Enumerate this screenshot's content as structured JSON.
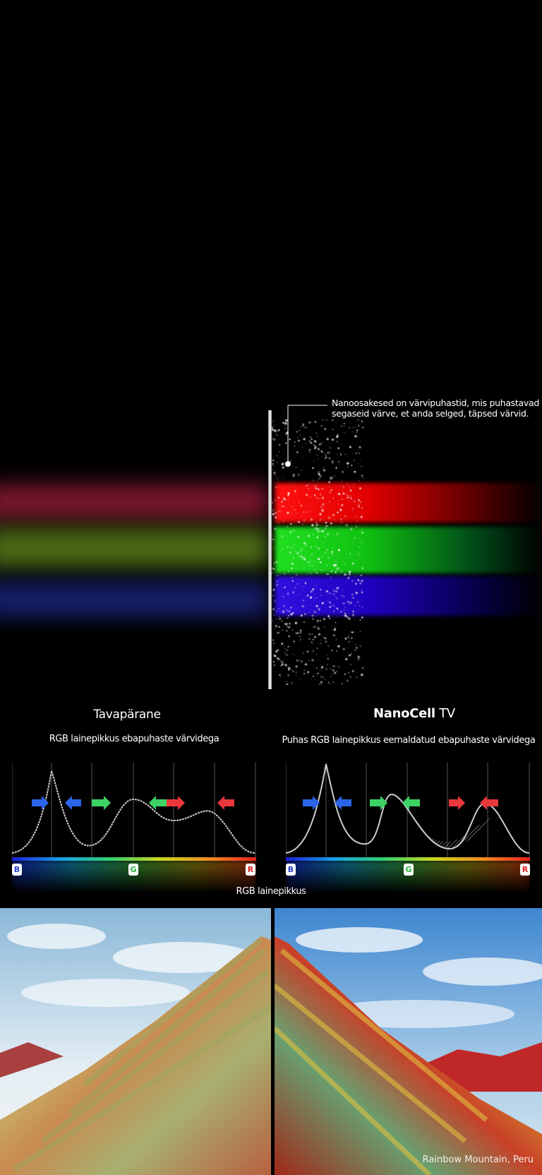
{
  "callout": {
    "text_line1": "Nanoosakesed on värvipuhastid, mis puhastavad",
    "text_line2": "segaseid värve, et anda selged, täpsed värvid."
  },
  "left_panel": {
    "title": "Tavapärane",
    "subtitle": "RGB lainepikkus ebapuhaste värvidega"
  },
  "right_panel": {
    "title_bold": "NanoCell",
    "title_rest": " TV",
    "subtitle": "Puhas RGB lainepikkus eemaldatud ebapuhaste värvidega"
  },
  "axis_labels": {
    "b": "B",
    "g": "G",
    "r": "R"
  },
  "axis_title": "RGB lainepikkus",
  "photo_caption": "Rainbow Mountain, Peru",
  "colors": {
    "red": "#e8383c",
    "green": "#3cd264",
    "blue": "#2a64e8",
    "curve": "#cccccc"
  }
}
